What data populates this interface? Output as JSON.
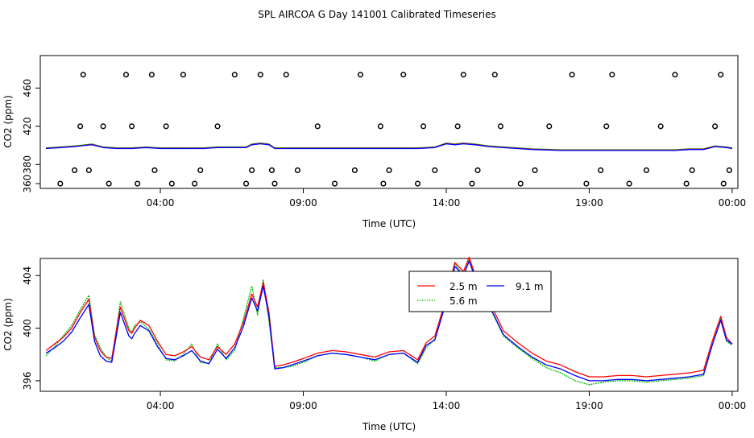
{
  "title": "SPL AIRCOA G  Day 141001  Calibrated Timeseries",
  "colors": {
    "s1": "#ff0000",
    "s2": "#00bb00",
    "s3": "#0000ff",
    "frame": "#000000"
  },
  "chart_data": [
    {
      "type": "line",
      "panel": "top",
      "xlabel": "Time (UTC)",
      "ylabel": "CO2 (ppm)",
      "xticks": [
        {
          "v": 4,
          "label": "04:00"
        },
        {
          "v": 9,
          "label": "09:00"
        },
        {
          "v": 14,
          "label": "14:00"
        },
        {
          "v": 19,
          "label": "19:00"
        },
        {
          "v": 24,
          "label": "00:00"
        }
      ],
      "yticks": [
        360,
        380,
        420,
        460
      ],
      "xlim": [
        -0.2,
        24.2
      ],
      "ylim": [
        355,
        494
      ],
      "series_line": {
        "x": [
          0,
          0.5,
          1,
          1.3,
          1.6,
          2,
          2.5,
          3,
          3.5,
          4,
          4.5,
          5,
          5.5,
          6,
          6.5,
          7,
          7.2,
          7.5,
          7.8,
          8,
          8.5,
          9,
          9.5,
          10,
          11,
          12,
          13,
          13.6,
          14,
          14.3,
          14.6,
          15,
          15.5,
          16,
          17,
          18,
          19,
          20,
          21,
          22,
          22.5,
          23,
          23.4,
          23.8,
          24
        ],
        "y": [
          397,
          398,
          399,
          400,
          401,
          398,
          397,
          397,
          398,
          397,
          397,
          397,
          397,
          398,
          398,
          398,
          401,
          402,
          401,
          397,
          397,
          397,
          397,
          397,
          397,
          397,
          397,
          398,
          402,
          401,
          402,
          401,
          399,
          398,
          396,
          395,
          395,
          395,
          395,
          395,
          396,
          396,
          399,
          398,
          397
        ]
      },
      "points": {
        "x": [
          0.5,
          1,
          1.2,
          1.3,
          1.5,
          2,
          2.2,
          2.8,
          3,
          3.2,
          3.7,
          3.8,
          4.2,
          4.4,
          4.8,
          5.2,
          5.4,
          6,
          6.6,
          7,
          7.2,
          7.5,
          7.9,
          8,
          8.4,
          8.8,
          9.5,
          10.1,
          10.8,
          11,
          11.7,
          11.8,
          12,
          12.5,
          13,
          13.2,
          13.6,
          14.4,
          14.6,
          14.9,
          15.1,
          15.7,
          15.9,
          16.6,
          17.1,
          17.6,
          18.4,
          18.9,
          19.4,
          19.6,
          19.8,
          20.4,
          21,
          21.5,
          22,
          22.4,
          22.6,
          23.4,
          23.6,
          23.7,
          23.9
        ],
        "y": [
          360,
          374,
          420,
          474,
          374,
          420,
          360,
          474,
          420,
          360,
          474,
          374,
          420,
          360,
          474,
          360,
          374,
          420,
          474,
          360,
          374,
          474,
          374,
          360,
          474,
          374,
          420,
          360,
          374,
          474,
          420,
          360,
          374,
          474,
          360,
          420,
          374,
          420,
          474,
          360,
          374,
          474,
          420,
          360,
          374,
          420,
          474,
          360,
          374,
          420,
          474,
          360,
          374,
          420,
          474,
          360,
          374,
          420,
          474,
          360,
          374
        ]
      }
    },
    {
      "type": "line",
      "panel": "bottom",
      "xlabel": "Time (UTC)",
      "ylabel": "CO2 (ppm)",
      "xticks": [
        {
          "v": 4,
          "label": "04:00"
        },
        {
          "v": 9,
          "label": "09:00"
        },
        {
          "v": 14,
          "label": "14:00"
        },
        {
          "v": 19,
          "label": "19:00"
        },
        {
          "v": 24,
          "label": "00:00"
        }
      ],
      "yticks": [
        396,
        400,
        404
      ],
      "xlim": [
        -0.2,
        24.2
      ],
      "ylim": [
        395.2,
        405.3
      ],
      "legend": {
        "position": "top-center",
        "entries": [
          {
            "key": "s1",
            "name": "2.5 m"
          },
          {
            "key": "s2",
            "name": "5.6 m"
          },
          {
            "key": "s3",
            "name": "9.1 m"
          }
        ]
      },
      "x": [
        0,
        0.3,
        0.6,
        0.9,
        1.2,
        1.5,
        1.7,
        1.9,
        2.1,
        2.3,
        2.6,
        2.9,
        3,
        3.1,
        3.3,
        3.6,
        3.9,
        4.2,
        4.5,
        4.8,
        5.1,
        5.4,
        5.7,
        6,
        6.3,
        6.6,
        6.9,
        7.2,
        7.4,
        7.6,
        7.8,
        8,
        8.3,
        8.6,
        9,
        9.5,
        10,
        10.5,
        11,
        11.5,
        12,
        12.5,
        13,
        13.3,
        13.6,
        14,
        14.3,
        14.6,
        14.8,
        15,
        15.3,
        15.6,
        16,
        16.5,
        17,
        17.5,
        18,
        18.5,
        19,
        19.5,
        20,
        20.5,
        21,
        21.5,
        22,
        22.5,
        23,
        23.3,
        23.6,
        23.8,
        24
      ],
      "series": [
        {
          "key": "s1",
          "values": [
            398.3,
            398.8,
            399.3,
            400.0,
            401.2,
            402.2,
            399.3,
            398.3,
            397.8,
            397.7,
            401.6,
            399.8,
            399.6,
            400.0,
            400.6,
            400.2,
            399.0,
            398.0,
            397.9,
            398.2,
            398.6,
            397.8,
            397.6,
            398.6,
            398.0,
            398.8,
            400.4,
            402.6,
            401.6,
            403.5,
            401.2,
            397.1,
            397.2,
            397.4,
            397.7,
            398.1,
            398.3,
            398.2,
            398.0,
            397.8,
            398.2,
            398.3,
            397.6,
            398.9,
            399.4,
            402.3,
            405.0,
            404.3,
            405.4,
            404.1,
            403.5,
            401.6,
            399.8,
            398.9,
            398.1,
            397.5,
            397.2,
            396.7,
            396.3,
            396.3,
            396.4,
            396.4,
            396.3,
            396.4,
            396.5,
            396.6,
            396.8,
            399.0,
            400.9,
            399.3,
            398.8
          ]
        },
        {
          "key": "s2",
          "values": [
            397.9,
            398.6,
            399.4,
            400.2,
            401.4,
            402.5,
            399.5,
            398.5,
            397.8,
            397.5,
            402.0,
            400.0,
            399.7,
            400.2,
            400.5,
            399.9,
            398.8,
            397.6,
            397.5,
            398.0,
            398.8,
            397.4,
            397.3,
            398.8,
            397.6,
            398.3,
            400.7,
            403.2,
            401.0,
            403.7,
            400.5,
            397.0,
            397.0,
            397.1,
            397.4,
            397.9,
            398.1,
            398.0,
            397.8,
            397.5,
            398.0,
            398.1,
            397.3,
            398.5,
            399.2,
            402.1,
            404.9,
            404.0,
            405.2,
            403.8,
            403.1,
            401.2,
            399.4,
            398.5,
            397.7,
            397.0,
            396.6,
            396.0,
            395.7,
            395.9,
            396.0,
            396.0,
            395.9,
            396.0,
            396.1,
            396.2,
            396.4,
            398.7,
            400.7,
            399.0,
            398.7
          ]
        },
        {
          "key": "s3",
          "values": [
            398.1,
            398.5,
            399.0,
            399.7,
            400.8,
            401.8,
            399.0,
            397.9,
            397.5,
            397.4,
            401.2,
            399.4,
            399.2,
            399.6,
            400.2,
            399.8,
            398.6,
            397.7,
            397.6,
            397.9,
            398.3,
            397.5,
            397.3,
            398.4,
            397.7,
            398.5,
            400.1,
            402.3,
            401.3,
            403.2,
            400.9,
            396.9,
            397.0,
            397.2,
            397.5,
            397.9,
            398.1,
            398.0,
            397.8,
            397.6,
            398.0,
            398.1,
            397.4,
            398.7,
            399.1,
            402.0,
            404.7,
            404.0,
            405.1,
            403.9,
            403.2,
            401.3,
            399.5,
            398.6,
            397.8,
            397.2,
            396.9,
            396.4,
            396.0,
            396.0,
            396.1,
            396.1,
            396.0,
            396.1,
            396.2,
            396.3,
            396.5,
            398.7,
            400.6,
            399.1,
            398.8
          ]
        }
      ]
    }
  ]
}
